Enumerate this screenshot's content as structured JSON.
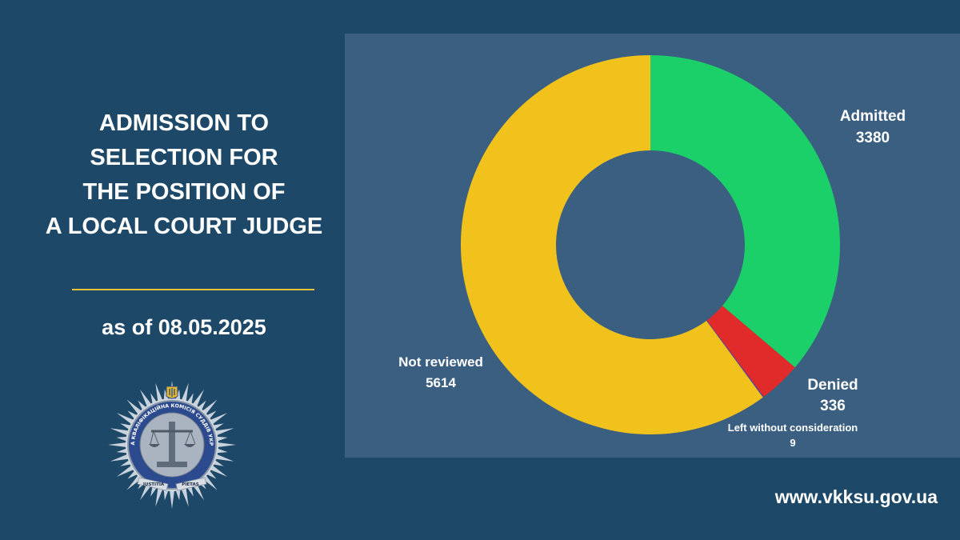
{
  "title_lines": [
    "ADMISSION TO",
    "SELECTION FOR",
    "THE POSITION OF",
    "A LOCAL COURT JUDGE"
  ],
  "date_text": "as of 08.05.2025",
  "website": "www.vkksu.gov.ua",
  "emblem": {
    "ring_text": "ВИЩА КВАЛІФІКАЦІЙНА КОМІСІЯ СУДДІВ УКРАЇНИ",
    "ribbon_left": "IUSTITIA",
    "ribbon_right": "PIETAS"
  },
  "colors": {
    "background": "#1d4868",
    "panel": "#3a5f81",
    "admitted": "#1bd068",
    "denied": "#e12b2b",
    "left_without_consideration": "#5b3ea6",
    "not_reviewed": "#f2c21c",
    "divider": "#e8c33a"
  },
  "chart_data": {
    "type": "pie",
    "variant": "donut",
    "series": [
      {
        "name": "Admitted",
        "value": 3380,
        "color": "#1bd068"
      },
      {
        "name": "Denied",
        "value": 336,
        "color": "#e12b2b"
      },
      {
        "name": "Left without consideration",
        "value": 9,
        "color": "#5b3ea6"
      },
      {
        "name": "Not reviewed",
        "value": 5614,
        "color": "#f2c21c"
      }
    ],
    "start": "12 o'clock",
    "direction": "clockwise"
  }
}
